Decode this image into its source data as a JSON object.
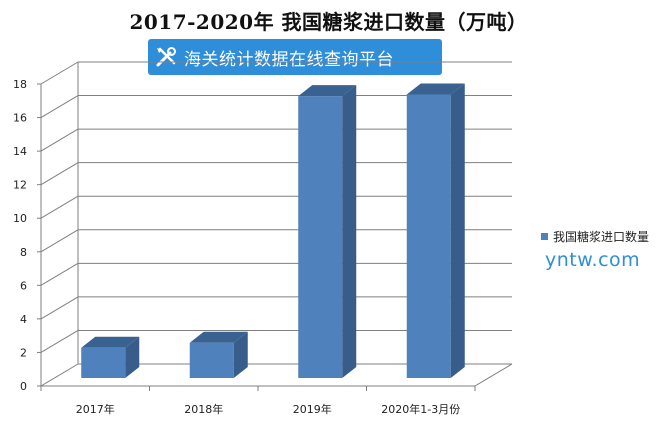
{
  "title": "2017-2020年 我国糖浆进口数量（万吨）",
  "banner": {
    "text": "海关统计数据在线查询平台",
    "icon": "tools-icon"
  },
  "watermark": "yntw.com",
  "colors": {
    "bar_front": "#4f81bd",
    "bar_side": "#385d8a",
    "bar_top": "#3a6290",
    "banner": "#2f8ed9",
    "grid": "#7f7f7f"
  },
  "chart_data": {
    "type": "bar",
    "title": "2017-2020年 我国糖浆进口数量（万吨）",
    "categories": [
      "2017年",
      "2018年",
      "2019年",
      "2020年1-3月份"
    ],
    "series": [
      {
        "name": "我国糖浆进口数量",
        "values": [
          1.8,
          2.1,
          16.8,
          16.9
        ]
      }
    ],
    "ylim": [
      0,
      18
    ],
    "yticks": [
      0,
      2,
      4,
      6,
      8,
      10,
      12,
      14,
      16,
      18
    ],
    "grid": true,
    "legend": "right",
    "style": "3d"
  }
}
